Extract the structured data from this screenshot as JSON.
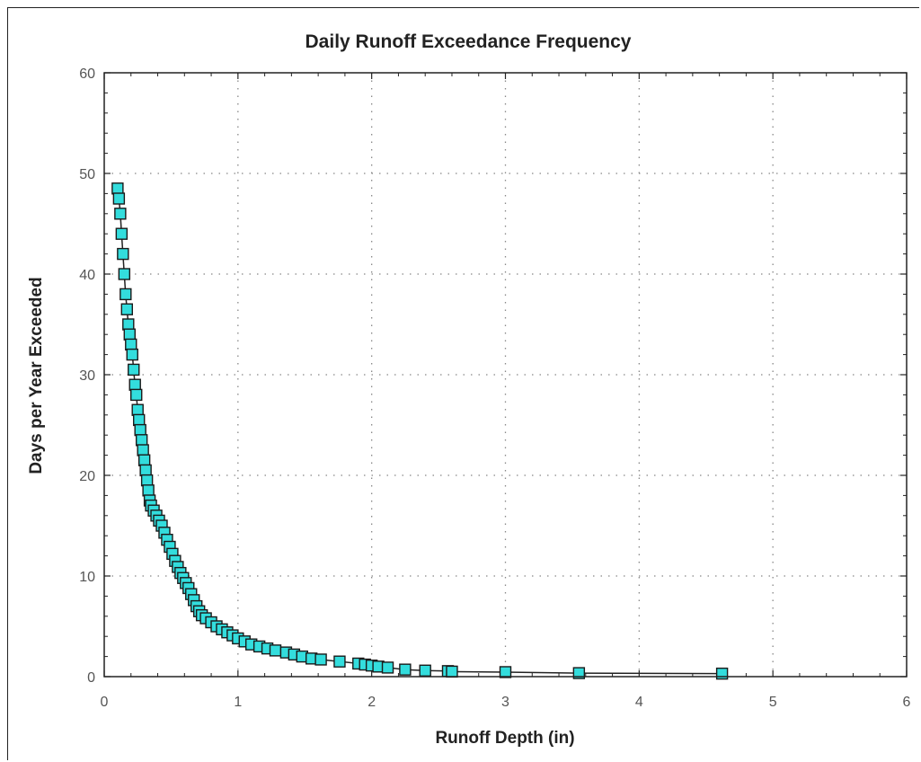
{
  "chart_data": {
    "type": "scatter",
    "title": "Daily Runoff Exceedance Frequency",
    "xlabel": "Runoff Depth (in)",
    "ylabel": "Days per Year Exceeded",
    "xlim": [
      0,
      6
    ],
    "ylim": [
      0,
      60
    ],
    "xticks": [
      "0",
      "1",
      "2",
      "3",
      "4",
      "5",
      "6"
    ],
    "yticks": [
      "0",
      "10",
      "20",
      "30",
      "40",
      "50",
      "60"
    ],
    "grid": true,
    "marker": "square",
    "marker_color": "#33dddd",
    "line_color": "#222222",
    "series": [
      {
        "points": [
          [
            0.1,
            48.5
          ],
          [
            0.11,
            47.5
          ],
          [
            0.12,
            46.0
          ],
          [
            0.13,
            44.0
          ],
          [
            0.14,
            42.0
          ],
          [
            0.15,
            40.0
          ],
          [
            0.16,
            38.0
          ],
          [
            0.17,
            36.5
          ],
          [
            0.18,
            35.0
          ],
          [
            0.19,
            34.0
          ],
          [
            0.2,
            33.0
          ],
          [
            0.21,
            32.0
          ],
          [
            0.22,
            30.5
          ],
          [
            0.23,
            29.0
          ],
          [
            0.24,
            28.0
          ],
          [
            0.25,
            26.5
          ],
          [
            0.26,
            25.5
          ],
          [
            0.27,
            24.5
          ],
          [
            0.28,
            23.5
          ],
          [
            0.29,
            22.5
          ],
          [
            0.3,
            21.5
          ],
          [
            0.31,
            20.5
          ],
          [
            0.32,
            19.5
          ],
          [
            0.33,
            18.5
          ],
          [
            0.34,
            17.5
          ],
          [
            0.35,
            17.0
          ],
          [
            0.37,
            16.5
          ],
          [
            0.39,
            16.0
          ],
          [
            0.41,
            15.5
          ],
          [
            0.43,
            15.0
          ],
          [
            0.45,
            14.3
          ],
          [
            0.47,
            13.6
          ],
          [
            0.49,
            12.9
          ],
          [
            0.51,
            12.2
          ],
          [
            0.53,
            11.5
          ],
          [
            0.55,
            10.9
          ],
          [
            0.57,
            10.3
          ],
          [
            0.59,
            9.8
          ],
          [
            0.61,
            9.3
          ],
          [
            0.63,
            8.8
          ],
          [
            0.65,
            8.2
          ],
          [
            0.67,
            7.6
          ],
          [
            0.69,
            7.0
          ],
          [
            0.71,
            6.5
          ],
          [
            0.73,
            6.1
          ],
          [
            0.76,
            5.8
          ],
          [
            0.8,
            5.4
          ],
          [
            0.84,
            5.0
          ],
          [
            0.88,
            4.7
          ],
          [
            0.92,
            4.4
          ],
          [
            0.96,
            4.1
          ],
          [
            1.0,
            3.8
          ],
          [
            1.05,
            3.5
          ],
          [
            1.1,
            3.2
          ],
          [
            1.16,
            3.0
          ],
          [
            1.22,
            2.8
          ],
          [
            1.28,
            2.6
          ],
          [
            1.36,
            2.4
          ],
          [
            1.42,
            2.2
          ],
          [
            1.48,
            2.0
          ],
          [
            1.55,
            1.8
          ],
          [
            1.62,
            1.7
          ],
          [
            1.76,
            1.5
          ],
          [
            1.9,
            1.3
          ],
          [
            1.95,
            1.2
          ],
          [
            2.0,
            1.1
          ],
          [
            2.05,
            1.0
          ],
          [
            2.12,
            0.9
          ],
          [
            2.25,
            0.7
          ],
          [
            2.4,
            0.6
          ],
          [
            2.57,
            0.55
          ],
          [
            2.6,
            0.5
          ],
          [
            3.0,
            0.45
          ],
          [
            3.55,
            0.35
          ],
          [
            4.62,
            0.3
          ]
        ]
      }
    ]
  }
}
